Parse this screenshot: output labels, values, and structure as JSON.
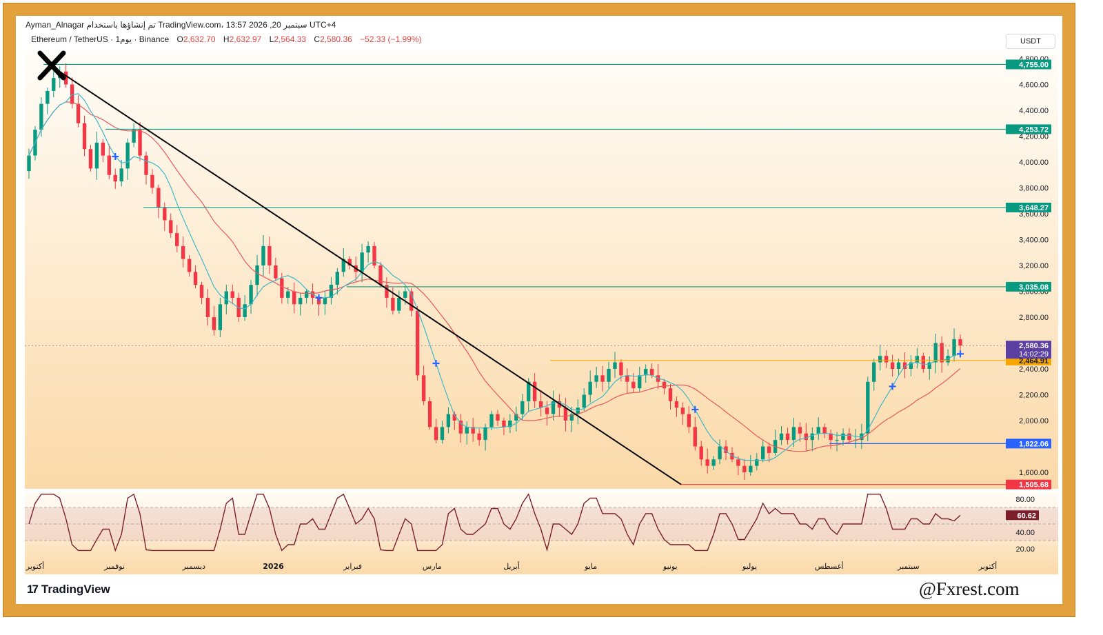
{
  "header": {
    "author_line": "Ayman_Alnagar تم إنشاؤها باستخدام TradingView.com، 13:57 2026 ,20 سبتمبر UTC+4",
    "symbol": "Ethereum / TetherUS · 1يوم · Binance",
    "ohlc": {
      "o_label": "O",
      "o_value": "2,632.70",
      "h_label": "H",
      "h_value": "2,632.97",
      "l_label": "L",
      "l_value": "2,564.33",
      "c_label": "C",
      "c_value": "2,580.36",
      "change": "−52.33 (−1.99%)"
    },
    "currency_button": "USDT"
  },
  "footer": {
    "logo_mark": "17",
    "logo_text": "TradingView",
    "watermark": "@Fxrest.com"
  },
  "chart_data": {
    "type": "candlestick",
    "y_axis": {
      "ticks": [
        1600,
        2000,
        2200,
        2400,
        2800,
        3000,
        3200,
        3400,
        3600,
        3800,
        4000,
        4200,
        4400,
        4600,
        4800
      ],
      "tick_labels": [
        "1,600.00",
        "2,000.00",
        "2,200.00",
        "2,400.00",
        "2,800.00",
        "3,000.00",
        "3,200.00",
        "3,400.00",
        "3,600.00",
        "3,800.00",
        "4,000.00",
        "4,200.00",
        "4,400.00",
        "4,600.00",
        "4,800.00"
      ]
    },
    "x_axis": {
      "labels": [
        "أكتوبر",
        "نوفمبر",
        "ديسمبر",
        "2026",
        "فبراير",
        "مارس",
        "أبريل",
        "مايو",
        "يونيو",
        "يوليو",
        "أغسطس",
        "سبتمبر",
        "أكتوبر"
      ]
    },
    "price_levels": [
      {
        "value": 4755.0,
        "label": "4,755.00",
        "color": "#089981"
      },
      {
        "value": 4253.72,
        "label": "4,253.72",
        "color": "#089981"
      },
      {
        "value": 3648.27,
        "label": "3,648.27",
        "color": "#089981"
      },
      {
        "value": 3035.08,
        "label": "3,035.08",
        "color": "#089981"
      },
      {
        "value": 2464.91,
        "label": "2,464.91",
        "color": "#f7a600"
      },
      {
        "value": 1822.06,
        "label": "1,822.06",
        "color": "#2962ff"
      },
      {
        "value": 1505.68,
        "label": "1,505.68",
        "color": "#f23645"
      }
    ],
    "last_price": {
      "value": 2580.36,
      "label": "2,580.36",
      "countdown": "14:02:29",
      "color": "#5b3fa3"
    },
    "closes": [
      4050,
      4250,
      4450,
      4550,
      4650,
      4700,
      4600,
      4450,
      4300,
      4100,
      3950,
      4150,
      4050,
      3900,
      3850,
      3950,
      4150,
      4250,
      4050,
      3900,
      3800,
      3650,
      3550,
      3450,
      3350,
      3250,
      3150,
      3050,
      2950,
      2800,
      2700,
      2900,
      3000,
      2950,
      2800,
      2900,
      3050,
      3200,
      3350,
      3200,
      3100,
      2950,
      3000,
      2900,
      2950,
      3000,
      2950,
      2900,
      2950,
      3050,
      3150,
      3250,
      3200,
      3150,
      3300,
      3350,
      3200,
      3050,
      2950,
      2850,
      2950,
      3000,
      2850,
      2350,
      2150,
      1950,
      1850,
      1950,
      2050,
      2000,
      1900,
      1950,
      1900,
      1850,
      1950,
      2050,
      2000,
      1950,
      2000,
      2050,
      2150,
      2300,
      2150,
      2100,
      2050,
      2150,
      2100,
      2000,
      2050,
      2100,
      2200,
      2300,
      2350,
      2300,
      2400,
      2450,
      2350,
      2300,
      2250,
      2350,
      2400,
      2350,
      2300,
      2250,
      2150,
      2100,
      2050,
      1950,
      1800,
      1700,
      1650,
      1700,
      1800,
      1750,
      1700,
      1650,
      1600,
      1650,
      1700,
      1800,
      1750,
      1850,
      1900,
      1850,
      1950,
      1900,
      1850,
      1900,
      1950,
      1900,
      1850,
      1850,
      1900,
      1850,
      1850,
      1900,
      2300,
      2450,
      2500,
      2450,
      2400,
      2450,
      2400,
      2450,
      2500,
      2400,
      2450,
      2600,
      2450,
      2500,
      2630,
      2580
    ],
    "first_date": "أكتوبر",
    "drawings": {
      "trendline": {
        "from_value": 4755.0,
        "to_value": 1505.68,
        "color": "#000000"
      },
      "top_marker": "x-mark"
    },
    "indicators": {
      "ma_fast_color": "#3cb7c9",
      "ma_slow_color": "#e9585c",
      "cross_marker_color": "#2962ff"
    },
    "rsi": {
      "current_label": "60.62",
      "current_value": 60.62,
      "upper_band": 70,
      "lower_band": 30,
      "ticks": [
        20,
        40,
        80
      ],
      "tick_labels": [
        "20.00",
        "40.00",
        "80.00"
      ],
      "line_color": "#7a1f2b",
      "label_color": "#7a1f2b"
    },
    "colors": {
      "up": "#089981",
      "down": "#f23645",
      "background_top": "#fffdf8",
      "background_bottom": "#fbd9a8"
    }
  }
}
